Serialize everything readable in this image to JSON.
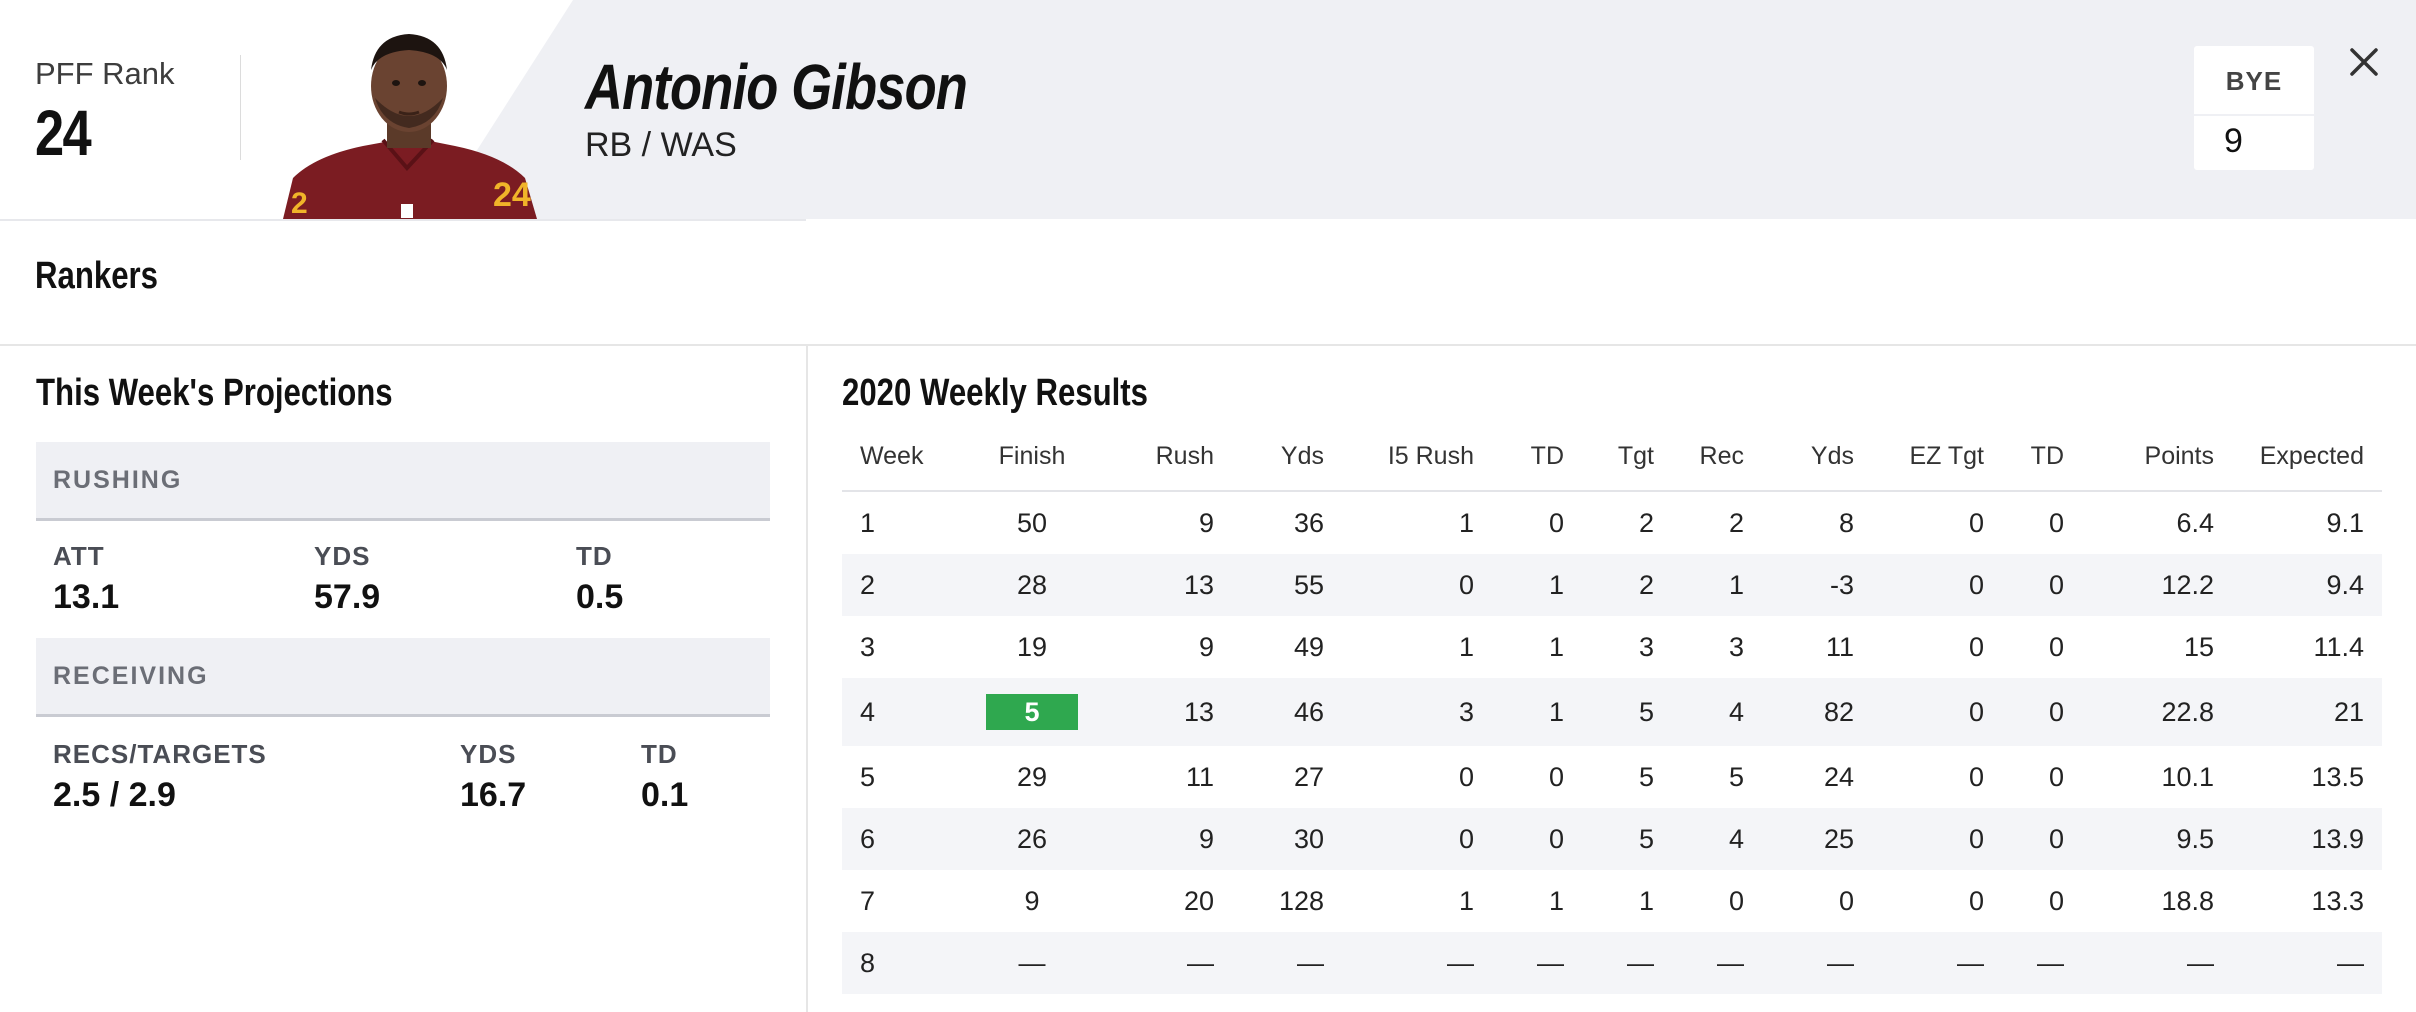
{
  "header": {
    "rank_label": "PFF Rank",
    "rank_value": "24",
    "player_name": "Antonio Gibson",
    "position_team": "RB / WAS",
    "bye_label": "BYE",
    "bye_value": "9",
    "jersey_color": "#7b1c22"
  },
  "rankers": {
    "title": "Rankers"
  },
  "projections": {
    "title": "This Week's Projections",
    "rushing": {
      "heading": "RUSHING",
      "att_label": "ATT",
      "att_value": "13.1",
      "yds_label": "YDS",
      "yds_value": "57.9",
      "td_label": "TD",
      "td_value": "0.5"
    },
    "receiving": {
      "heading": "RECEIVING",
      "recs_label": "RECS/TARGETS",
      "recs_value": "2.5 / 2.9",
      "yds_label": "YDS",
      "yds_value": "16.7",
      "td_label": "TD",
      "td_value": "0.1"
    }
  },
  "results": {
    "title": "2020 Weekly Results",
    "columns": [
      "Week",
      "Finish",
      "Rush",
      "Yds",
      "I5 Rush",
      "TD",
      "Tgt",
      "Rec",
      "Yds",
      "EZ Tgt",
      "TD",
      "Points",
      "Expected"
    ],
    "rows": [
      [
        "1",
        "50",
        "9",
        "36",
        "1",
        "0",
        "2",
        "2",
        "8",
        "0",
        "0",
        "6.4",
        "9.1"
      ],
      [
        "2",
        "28",
        "13",
        "55",
        "0",
        "1",
        "2",
        "1",
        "-3",
        "0",
        "0",
        "12.2",
        "9.4"
      ],
      [
        "3",
        "19",
        "9",
        "49",
        "1",
        "1",
        "3",
        "3",
        "11",
        "0",
        "0",
        "15",
        "11.4"
      ],
      [
        "4",
        "5",
        "13",
        "46",
        "3",
        "1",
        "5",
        "4",
        "82",
        "0",
        "0",
        "22.8",
        "21"
      ],
      [
        "5",
        "29",
        "11",
        "27",
        "0",
        "0",
        "5",
        "5",
        "24",
        "0",
        "0",
        "10.1",
        "13.5"
      ],
      [
        "6",
        "26",
        "9",
        "30",
        "0",
        "0",
        "5",
        "4",
        "25",
        "0",
        "0",
        "9.5",
        "13.9"
      ],
      [
        "7",
        "9",
        "20",
        "128",
        "1",
        "1",
        "1",
        "0",
        "0",
        "0",
        "0",
        "18.8",
        "13.3"
      ],
      [
        "8",
        "—",
        "—",
        "—",
        "—",
        "—",
        "—",
        "—",
        "—",
        "—",
        "—",
        "—",
        "—"
      ]
    ],
    "highlight": {
      "row": 3,
      "color": "#2fa84f"
    }
  }
}
